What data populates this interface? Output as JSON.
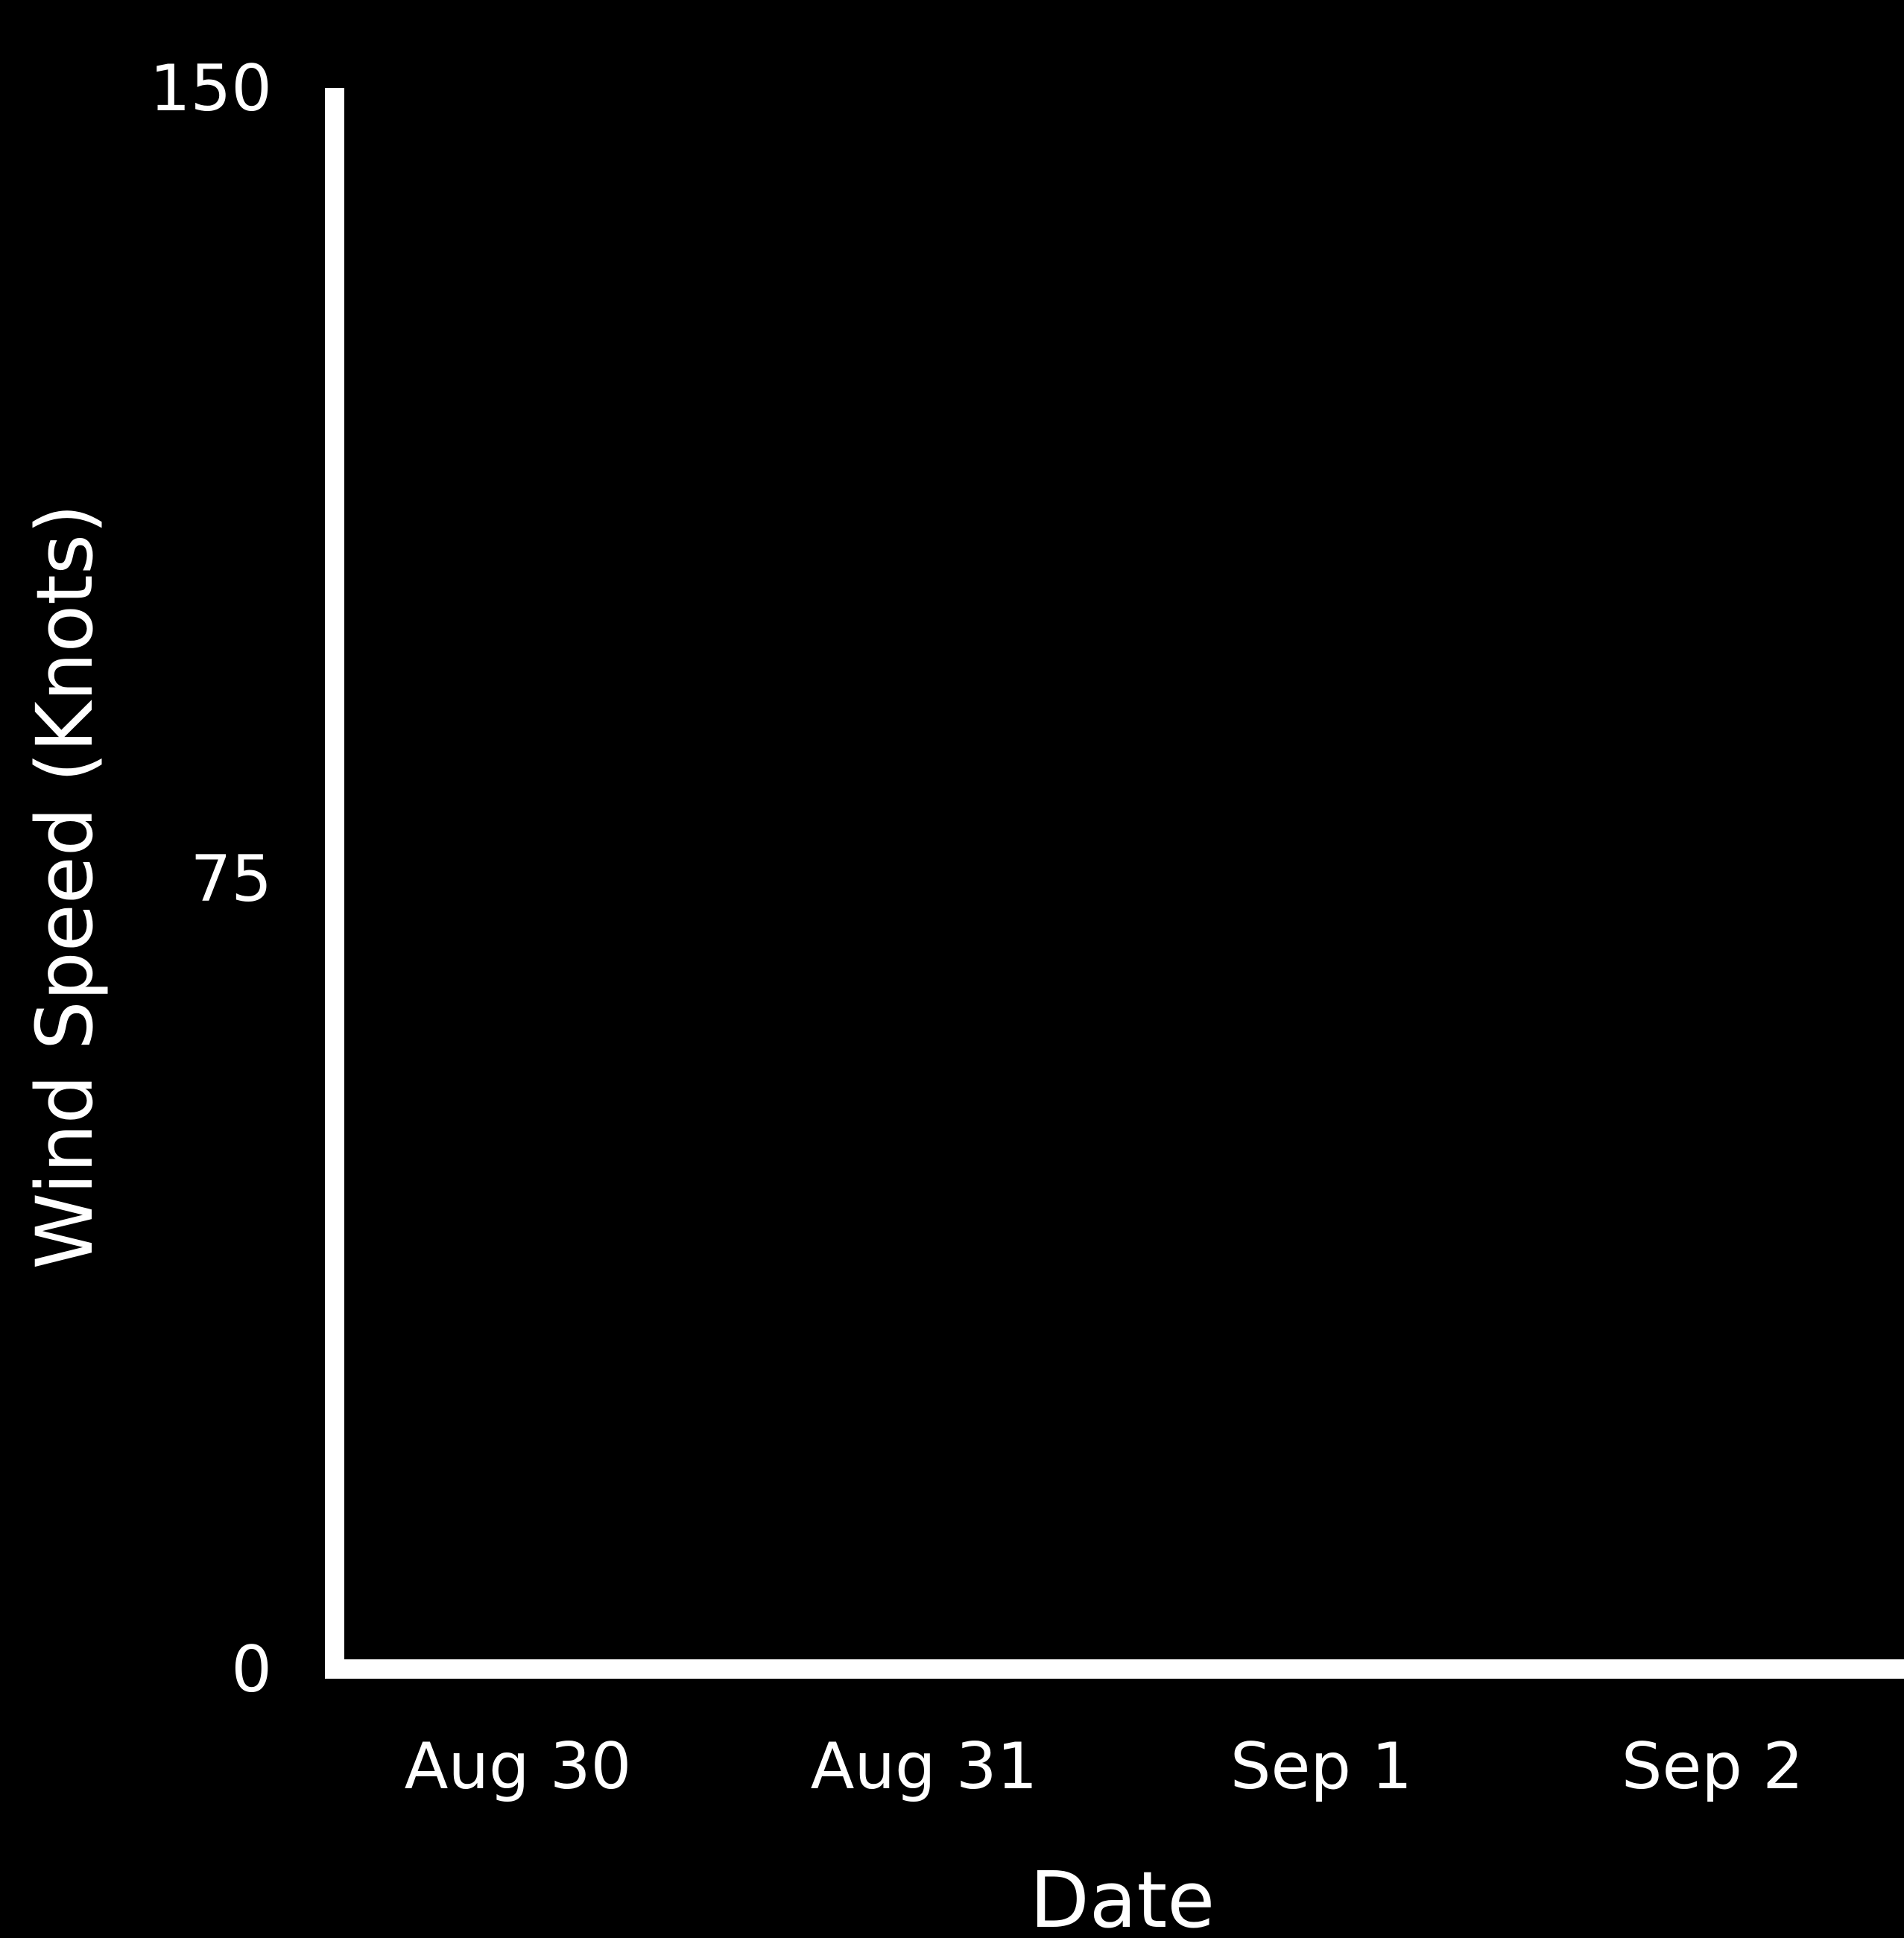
{
  "chart_data": {
    "type": "line",
    "title": "",
    "xlabel": "Date",
    "ylabel": "Wind Speed (Knots)",
    "x_ticks": [
      "Aug 30",
      "Aug 31",
      "Sep 1",
      "Sep 2"
    ],
    "y_ticks": [
      0,
      75,
      150
    ],
    "ylim": [
      0,
      150
    ],
    "grid": false,
    "series": []
  },
  "colors": {
    "background": "#000000",
    "foreground": "#ffffff"
  }
}
